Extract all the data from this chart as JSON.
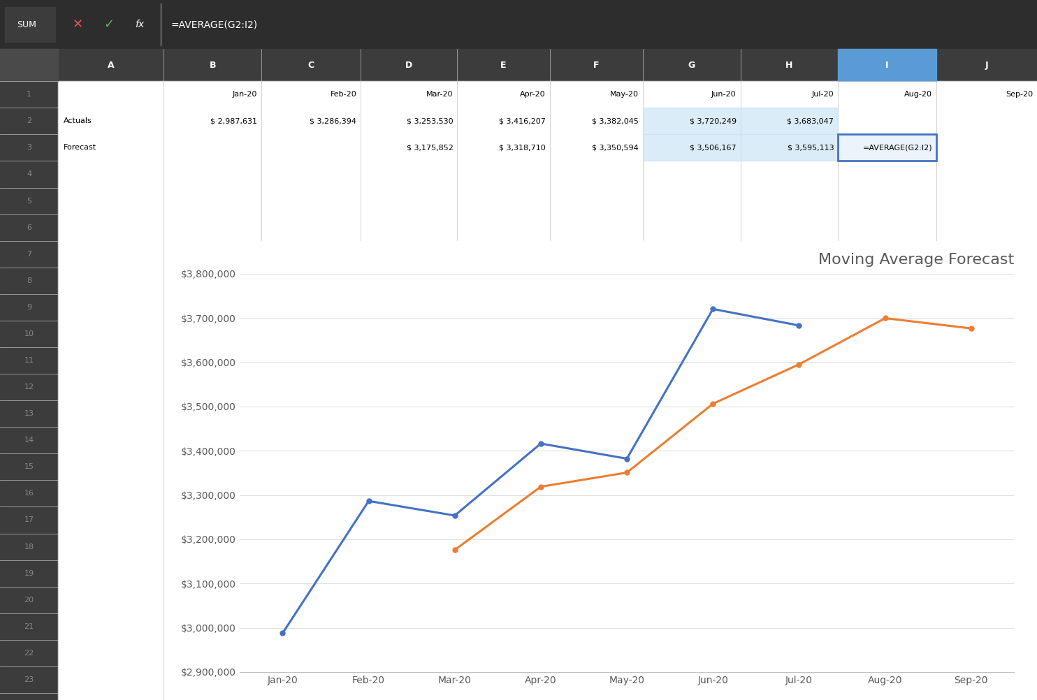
{
  "title": "Moving Average Forecast",
  "categories": [
    "Jan-20",
    "Feb-20",
    "Mar-20",
    "Apr-20",
    "May-20",
    "Jun-20",
    "Jul-20",
    "Aug-20",
    "Sep-20"
  ],
  "actuals": [
    2987631,
    3286394,
    3253530,
    3416207,
    3382045,
    3720249,
    3683047,
    null,
    null
  ],
  "forecast": [
    null,
    null,
    3175852,
    3318710,
    3350594,
    3506167,
    3595113,
    3699469,
    3676435
  ],
  "actuals_color": "#4472C4",
  "forecast_color": "#ED7D31",
  "ylim_min": 2900000,
  "ylim_max": 3800000,
  "ytick_step": 100000,
  "legend_labels": [
    "Actuals",
    "Forecast"
  ],
  "chart_title_color": "#595959",
  "grid_color": "#E0E0E0",
  "axis_label_color": "#595959",
  "title_fontsize": 16,
  "tick_fontsize": 10,
  "legend_fontsize": 10,
  "line_width": 2.2,
  "marker": "o",
  "marker_size": 5,
  "spreadsheet_dark_bg": "#1E1E1E",
  "formula_bar_bg": "#2D2D2D",
  "header_bg": "#3C3C3C",
  "cell_bg": "#FFFFFF",
  "cell_grid_color": "#C0C0C0",
  "header_text_color": "#FFFFFF",
  "cell_text_color": "#000000",
  "row_num_color": "#888888",
  "formula_text": "=AVERAGE(G2:I2)",
  "sum_box_text": "SUM",
  "col_headers": [
    "A",
    "B",
    "C",
    "D",
    "E",
    "F",
    "G",
    "H",
    "I",
    "J"
  ],
  "row1_data": [
    "",
    "Jan-20",
    "Feb-20",
    "Mar-20",
    "Apr-20",
    "May-20",
    "Jun-20",
    "Jul-20",
    "Aug-20",
    "Sep-20"
  ],
  "row2_data": [
    "Actuals",
    "$ 2,987,631",
    "$ 3,286,394",
    "$ 3,253,530",
    "$ 3,416,207",
    "$ 3,382,045",
    "$ 3,720,249",
    "$ 3,683,047",
    "",
    ""
  ],
  "row3_data": [
    "Forecast",
    "",
    "",
    "$ 3,175,852",
    "$ 3,318,710",
    "$ 3,350,594",
    "$ 3,506,167",
    "$ 3,595,113",
    "=AVERAGE(G2:I2)",
    ""
  ],
  "num_empty_rows": 24
}
